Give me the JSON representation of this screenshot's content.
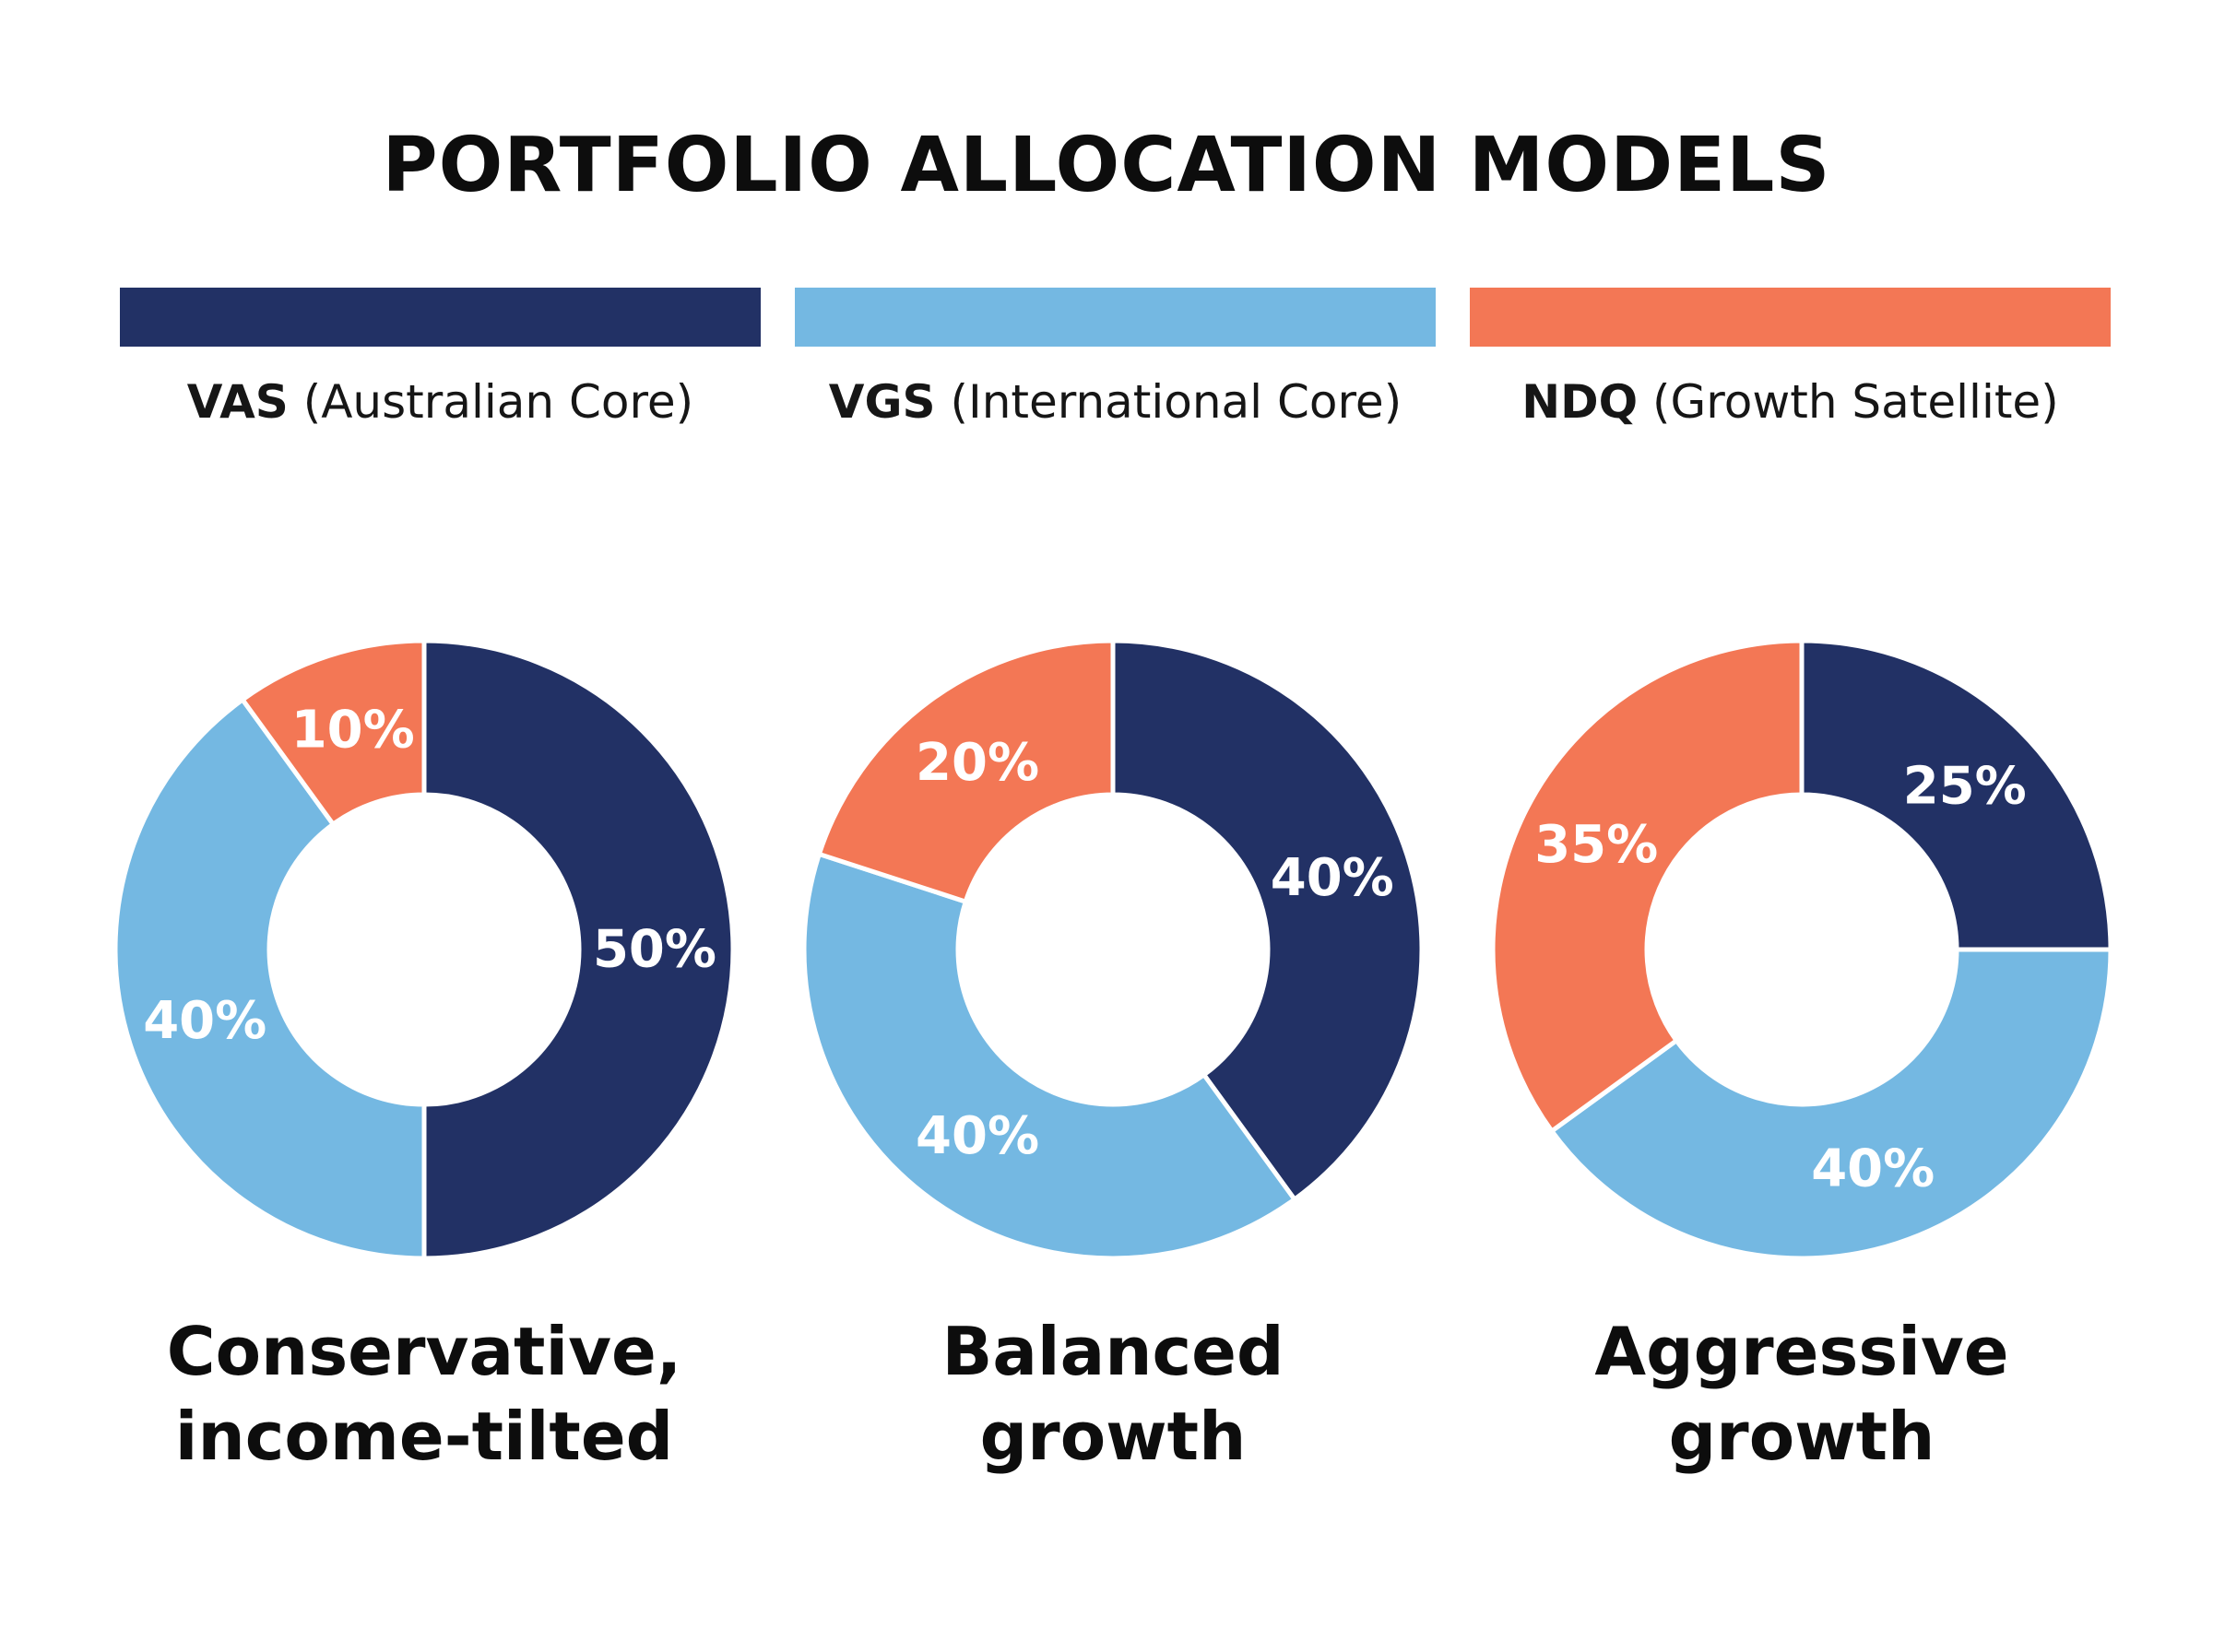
{
  "title": "PORTFOLIO ALLOCATION MODELS",
  "legend": [
    {
      "ticker": "VAS",
      "description": "(Australian Core)",
      "color": "#223165"
    },
    {
      "ticker": "VGS",
      "description": "(International Core)",
      "color": "#74b8e2"
    },
    {
      "ticker": "NDQ",
      "description": "(Growth Satellite)",
      "color": "#f37755"
    }
  ],
  "chart_data": [
    {
      "type": "pie",
      "donut": true,
      "caption_lines": [
        "Conservative,",
        "income-tilted"
      ],
      "categories": [
        "VAS",
        "VGS",
        "NDQ"
      ],
      "values": [
        50,
        40,
        10
      ],
      "labels": [
        "50%",
        "40%",
        "10%"
      ]
    },
    {
      "type": "pie",
      "donut": true,
      "caption_lines": [
        "Balanced",
        "growth"
      ],
      "categories": [
        "VAS",
        "VGS",
        "NDQ"
      ],
      "values": [
        40,
        40,
        20
      ],
      "labels": [
        "40%",
        "40%",
        "20%"
      ]
    },
    {
      "type": "pie",
      "donut": true,
      "caption_lines": [
        "Aggressive",
        "growth"
      ],
      "categories": [
        "VAS",
        "VGS",
        "NDQ"
      ],
      "values": [
        25,
        40,
        35
      ],
      "labels": [
        "25%",
        "40%",
        "35%"
      ]
    }
  ]
}
